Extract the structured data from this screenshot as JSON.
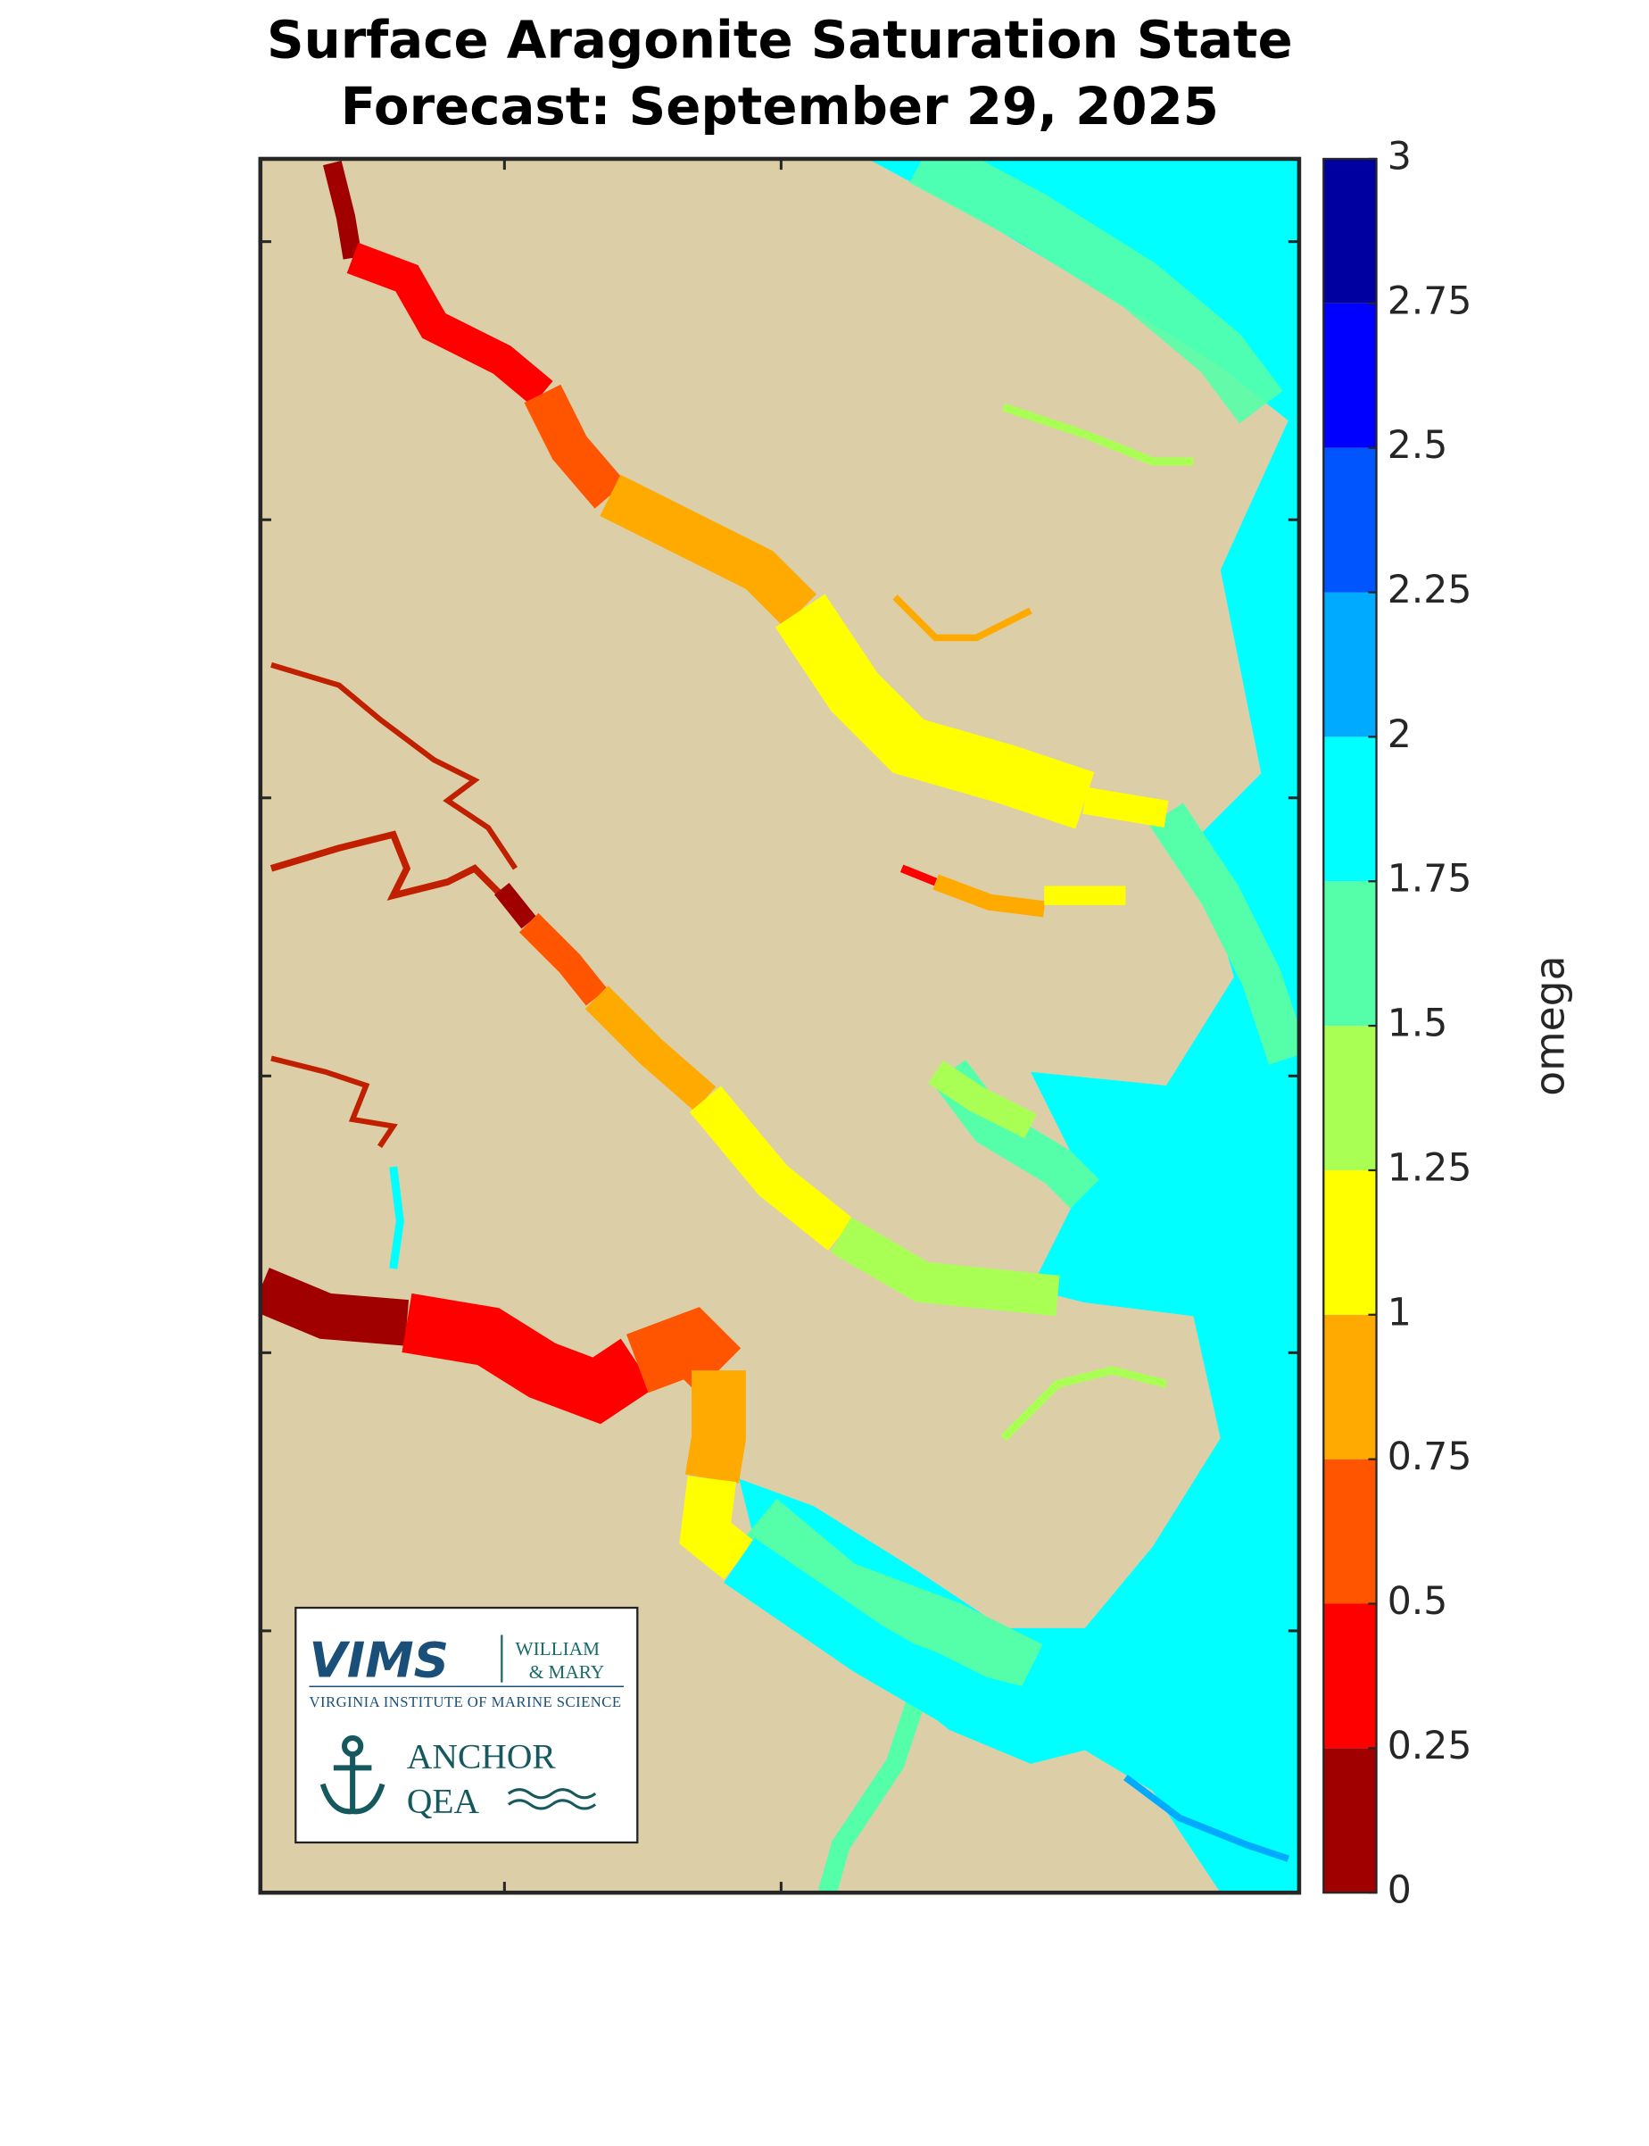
{
  "chart_data": {
    "type": "map",
    "title": "Surface Aragonite Saturation State",
    "subtitle": "Forecast: September 29, 2025",
    "colorbar": {
      "label": "omega",
      "lim": [
        0,
        3
      ],
      "ticks": [
        0,
        0.25,
        0.5,
        0.75,
        1,
        1.25,
        1.5,
        1.75,
        2,
        2.25,
        2.5,
        2.75,
        3
      ],
      "colors": [
        "#a00000",
        "#ff0000",
        "#ff5500",
        "#ffaa00",
        "#ffff00",
        "#aaff55",
        "#55ffaa",
        "#00ffff",
        "#00aaff",
        "#0055ff",
        "#0000ff",
        "#0000a0"
      ]
    }
  },
  "logo": {
    "vims": "VIMS",
    "wm_line1": "WILLIAM",
    "wm_line2": "& MARY",
    "institute": "VIRGINIA INSTITUTE OF MARINE SCIENCE",
    "anchor_line1": "ANCHOR",
    "anchor_line2": "QEA"
  }
}
